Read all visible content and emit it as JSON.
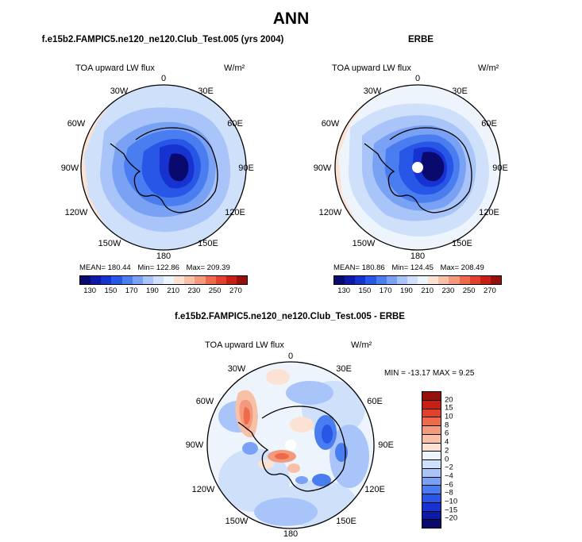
{
  "figure": {
    "title": "ANN",
    "panels": [
      {
        "title": "f.e15b2.FAMPIC5.ne120_ne120.Club_Test.005 (yrs 2004)",
        "variable": "TOA upward LW flux",
        "units": "W/m²",
        "longitude_labels": [
          "0",
          "30E",
          "60E",
          "90E",
          "120E",
          "150E",
          "180",
          "150W",
          "120W",
          "90W",
          "60W",
          "30W"
        ],
        "stats": {
          "mean": "MEAN= 180.44",
          "min": "Min= 122.86",
          "max": "Max= 209.39"
        }
      },
      {
        "title": "ERBE",
        "variable": "TOA upward LW flux",
        "units": "W/m²",
        "longitude_labels": [
          "0",
          "30E",
          "60E",
          "90E",
          "120E",
          "150E",
          "180",
          "150W",
          "120W",
          "90W",
          "60W",
          "30W"
        ],
        "stats": {
          "mean": "MEAN= 180.86",
          "min": "Min= 124.45",
          "max": "Max= 208.49"
        }
      },
      {
        "title": "f.e15b2.FAMPIC5.ne120_ne120.Club_Test.005 - ERBE",
        "variable": "TOA upward LW flux",
        "units": "W/m²",
        "longitude_labels": [
          "0",
          "30E",
          "60E",
          "90E",
          "120E",
          "150E",
          "180",
          "150W",
          "120W",
          "90W",
          "60W",
          "30W"
        ],
        "stats": {
          "minmax": "MIN = -13.17 MAX =    9.25"
        }
      }
    ],
    "colorbar_abs": {
      "colors": [
        "#0a0a6e",
        "#0d1aa8",
        "#1632d0",
        "#2856e6",
        "#4a7ef0",
        "#7aa2f4",
        "#a8c4f8",
        "#cfe0fb",
        "#eef4fb",
        "#fbe2d2",
        "#f8c0a6",
        "#f49a7c",
        "#ee6a4a",
        "#e2402a",
        "#c81e14",
        "#941008"
      ],
      "tick_labels": [
        "130",
        "150",
        "170",
        "190",
        "210",
        "230",
        "250",
        "270"
      ]
    },
    "colorbar_diff": {
      "colors": [
        "#941008",
        "#c81e14",
        "#e2402a",
        "#ee6a4a",
        "#f49a7c",
        "#f8c0a6",
        "#fbe2d2",
        "#eef4fb",
        "#cfe0fb",
        "#a8c4f8",
        "#7aa2f4",
        "#4a7ef0",
        "#2856e6",
        "#1632d0",
        "#0d1aa8",
        "#0a0a6e"
      ],
      "tick_labels": [
        "20",
        "15",
        "10",
        "8",
        "6",
        "4",
        "2",
        "0",
        "−2",
        "−4",
        "−6",
        "−8",
        "−10",
        "−15",
        "−20"
      ]
    }
  }
}
